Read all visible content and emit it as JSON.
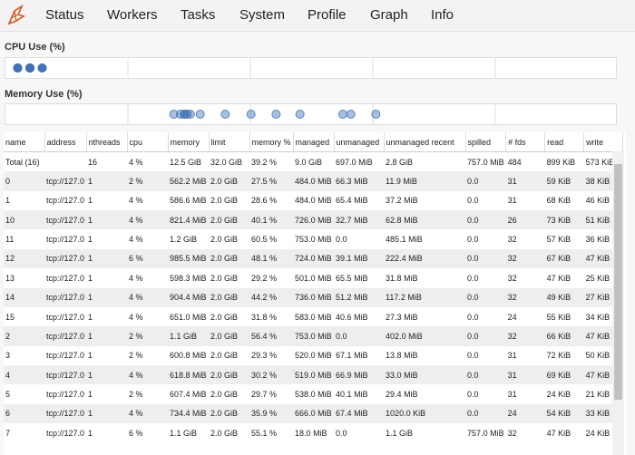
{
  "nav": [
    "Status",
    "Workers",
    "Tasks",
    "System",
    "Profile",
    "Graph",
    "Info"
  ],
  "cpu_plot": {
    "type": "scatter",
    "title": "CPU Use (%)",
    "xlim": [
      0,
      100
    ],
    "color": "#3f72b8",
    "values": [
      2,
      4,
      4,
      4,
      6,
      4,
      4,
      4,
      2,
      2,
      4,
      2,
      4,
      6
    ]
  },
  "memory_plot": {
    "type": "scatter",
    "title": "Memory Use (%)",
    "xlim": [
      0,
      100
    ],
    "color": "#3f72b8",
    "values": [
      27.5,
      28.6,
      40.1,
      60.5,
      48.1,
      29.2,
      44.2,
      31.8,
      56.4,
      29.3,
      30.2,
      29.7,
      35.9,
      55.1
    ]
  },
  "table": {
    "columns": [
      "name",
      "address",
      "nthreads",
      "cpu",
      "memory",
      "limit",
      "memory %",
      "managed",
      "unmanaged",
      "unmanaged recent",
      "spilled",
      "# fds",
      "read",
      "write"
    ],
    "rows": [
      [
        "Total (16)",
        "",
        "16",
        "4 %",
        "12.5 GiB",
        "32.0 GiB",
        "39.2 %",
        "9.0 GiB",
        "697.0 MiB",
        "2.8 GiB",
        "757.0 MiB",
        "484",
        "899 KiB",
        "573 KiB"
      ],
      [
        "0",
        "tcp://127.0",
        "1",
        "2 %",
        "562.2 MiB",
        "2.0 GiB",
        "27.5 %",
        "484.0 MiB",
        "66.3 MiB",
        "11.9 MiB",
        "0.0",
        "31",
        "59 KiB",
        "38 KiB"
      ],
      [
        "1",
        "tcp://127.0",
        "1",
        "4 %",
        "586.6 MiB",
        "2.0 GiB",
        "28.6 %",
        "484.0 MiB",
        "65.4 MiB",
        "37.2 MiB",
        "0.0",
        "31",
        "68 KiB",
        "46 KiB"
      ],
      [
        "10",
        "tcp://127.0",
        "1",
        "4 %",
        "821.4 MiB",
        "2.0 GiB",
        "40.1 %",
        "726.0 MiB",
        "32.7 MiB",
        "62.8 MiB",
        "0.0",
        "26",
        "73 KiB",
        "51 KiB"
      ],
      [
        "11",
        "tcp://127.0",
        "1",
        "4 %",
        "1.2 GiB",
        "2.0 GiB",
        "60.5 %",
        "753.0 MiB",
        "0.0",
        "485.1 MiB",
        "0.0",
        "32",
        "57 KiB",
        "36 KiB"
      ],
      [
        "12",
        "tcp://127.0",
        "1",
        "6 %",
        "985.5 MiB",
        "2.0 GiB",
        "48.1 %",
        "724.0 MiB",
        "39.1 MiB",
        "222.4 MiB",
        "0.0",
        "32",
        "67 KiB",
        "47 KiB"
      ],
      [
        "13",
        "tcp://127.0",
        "1",
        "4 %",
        "598.3 MiB",
        "2.0 GiB",
        "29.2 %",
        "501.0 MiB",
        "65.5 MiB",
        "31.8 MiB",
        "0.0",
        "32",
        "47 KiB",
        "25 KiB"
      ],
      [
        "14",
        "tcp://127.0",
        "1",
        "4 %",
        "904.4 MiB",
        "2.0 GiB",
        "44.2 %",
        "736.0 MiB",
        "51.2 MiB",
        "117.2 MiB",
        "0.0",
        "32",
        "49 KiB",
        "27 KiB"
      ],
      [
        "15",
        "tcp://127.0",
        "1",
        "4 %",
        "651.0 MiB",
        "2.0 GiB",
        "31.8 %",
        "583.0 MiB",
        "40.6 MiB",
        "27.3 MiB",
        "0.0",
        "24",
        "55 KiB",
        "34 KiB"
      ],
      [
        "2",
        "tcp://127.0",
        "1",
        "2 %",
        "1.1 GiB",
        "2.0 GiB",
        "56.4 %",
        "753.0 MiB",
        "0.0",
        "402.0 MiB",
        "0.0",
        "32",
        "66 KiB",
        "47 KiB"
      ],
      [
        "3",
        "tcp://127.0",
        "1",
        "2 %",
        "600.8 MiB",
        "2.0 GiB",
        "29.3 %",
        "520.0 MiB",
        "67.1 MiB",
        "13.8 MiB",
        "0.0",
        "31",
        "72 KiB",
        "50 KiB"
      ],
      [
        "4",
        "tcp://127.0",
        "1",
        "4 %",
        "618.8 MiB",
        "2.0 GiB",
        "30.2 %",
        "519.0 MiB",
        "66.9 MiB",
        "33.0 MiB",
        "0.0",
        "31",
        "69 KiB",
        "47 KiB"
      ],
      [
        "5",
        "tcp://127.0",
        "1",
        "2 %",
        "607.4 MiB",
        "2.0 GiB",
        "29.7 %",
        "538.0 MiB",
        "40.1 MiB",
        "29.4 MiB",
        "0.0",
        "31",
        "24 KiB",
        "21 KiB"
      ],
      [
        "6",
        "tcp://127.0",
        "1",
        "4 %",
        "734.4 MiB",
        "2.0 GiB",
        "35.9 %",
        "666.0 MiB",
        "67.4 MiB",
        "1020.0 KiB",
        "0.0",
        "24",
        "54 KiB",
        "33 KiB"
      ],
      [
        "7",
        "tcp://127.0",
        "1",
        "6 %",
        "1.1 GiB",
        "2.0 GiB",
        "55.1 %",
        "18.0 MiB",
        "0.0",
        "1.1 GiB",
        "757.0 MiB",
        "32",
        "47 KiB",
        "24 KiB"
      ]
    ]
  }
}
